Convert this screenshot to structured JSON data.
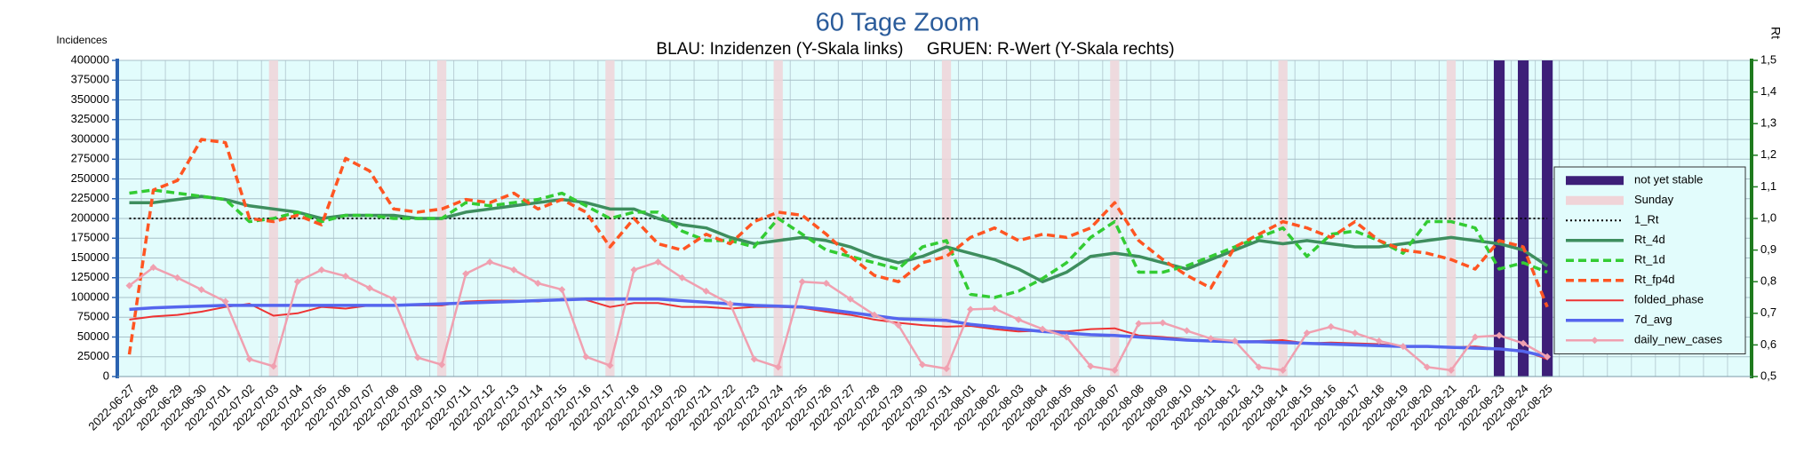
{
  "chart_data": {
    "type": "line",
    "title": "60 Tage Zoom",
    "subtitle": "BLAU: Inzidenzen (Y-Skala links)     GRUEN: R-Wert (Y-Skala rechts)",
    "ylabel": "Incidences",
    "y2label": "Rt",
    "categories": [
      "2022-06-27",
      "2022-06-28",
      "2022-06-29",
      "2022-06-30",
      "2022-07-01",
      "2022-07-02",
      "2022-07-03",
      "2022-07-04",
      "2022-07-05",
      "2022-07-06",
      "2022-07-07",
      "2022-07-08",
      "2022-07-09",
      "2022-07-10",
      "2022-07-11",
      "2022-07-12",
      "2022-07-13",
      "2022-07-14",
      "2022-07-15",
      "2022-07-16",
      "2022-07-17",
      "2022-07-18",
      "2022-07-19",
      "2022-07-20",
      "2022-07-21",
      "2022-07-22",
      "2022-07-23",
      "2022-07-24",
      "2022-07-25",
      "2022-07-26",
      "2022-07-27",
      "2022-07-28",
      "2022-07-29",
      "2022-07-30",
      "2022-07-31",
      "2022-08-01",
      "2022-08-02",
      "2022-08-03",
      "2022-08-04",
      "2022-08-05",
      "2022-08-06",
      "2022-08-07",
      "2022-08-08",
      "2022-08-09",
      "2022-08-10",
      "2022-08-11",
      "2022-08-12",
      "2022-08-13",
      "2022-08-14",
      "2022-08-15",
      "2022-08-16",
      "2022-08-17",
      "2022-08-18",
      "2022-08-19",
      "2022-08-20",
      "2022-08-21",
      "2022-08-22",
      "2022-08-23",
      "2022-08-24",
      "2022-08-25"
    ],
    "ylim": [
      0,
      400000
    ],
    "yticks": [
      0,
      25000,
      50000,
      75000,
      100000,
      125000,
      150000,
      175000,
      200000,
      225000,
      250000,
      275000,
      300000,
      325000,
      350000,
      375000,
      400000
    ],
    "y2lim": [
      0.5,
      1.5
    ],
    "y2ticks": [
      {
        "value": 0.5,
        "label": "0,5"
      },
      {
        "value": 0.6,
        "label": "0,6"
      },
      {
        "value": 0.7,
        "label": "0,7"
      },
      {
        "value": 0.8,
        "label": "0,8"
      },
      {
        "value": 0.9,
        "label": "0,9"
      },
      {
        "value": 1.0,
        "label": "1,0"
      },
      {
        "value": 1.1,
        "label": "1,1"
      },
      {
        "value": 1.2,
        "label": "1,2"
      },
      {
        "value": 1.3,
        "label": "1,3"
      },
      {
        "value": 1.4,
        "label": "1,4"
      },
      {
        "value": 1.5,
        "label": "1,5"
      }
    ],
    "grid": true,
    "legend": "right",
    "series": [
      {
        "name": "not yet stable",
        "color": "#3d1f78",
        "style": "bar",
        "axis": "y",
        "values": [
          null,
          null,
          null,
          null,
          null,
          null,
          null,
          null,
          null,
          null,
          null,
          null,
          null,
          null,
          null,
          null,
          null,
          null,
          null,
          null,
          null,
          null,
          null,
          null,
          null,
          null,
          null,
          null,
          null,
          null,
          null,
          null,
          null,
          null,
          null,
          null,
          null,
          null,
          null,
          null,
          null,
          null,
          null,
          null,
          null,
          null,
          null,
          null,
          null,
          null,
          null,
          null,
          null,
          null,
          null,
          null,
          null,
          400000,
          400000,
          400000
        ]
      },
      {
        "name": "Sunday",
        "color": "#f0d4d8",
        "style": "bar",
        "axis": "y",
        "values": [
          null,
          null,
          null,
          null,
          null,
          null,
          400000,
          null,
          null,
          null,
          null,
          null,
          null,
          400000,
          null,
          null,
          null,
          null,
          null,
          null,
          400000,
          null,
          null,
          null,
          null,
          null,
          null,
          400000,
          null,
          null,
          null,
          null,
          null,
          null,
          400000,
          null,
          null,
          null,
          null,
          null,
          null,
          400000,
          null,
          null,
          null,
          null,
          null,
          null,
          400000,
          null,
          null,
          null,
          null,
          null,
          null,
          400000,
          null,
          null,
          null,
          null
        ]
      },
      {
        "name": "1_Rt",
        "color": "#000000",
        "style": "dotted",
        "linewidth": 2,
        "axis": "y2",
        "values": [
          1,
          1,
          1,
          1,
          1,
          1,
          1,
          1,
          1,
          1,
          1,
          1,
          1,
          1,
          1,
          1,
          1,
          1,
          1,
          1,
          1,
          1,
          1,
          1,
          1,
          1,
          1,
          1,
          1,
          1,
          1,
          1,
          1,
          1,
          1,
          1,
          1,
          1,
          1,
          1,
          1,
          1,
          1,
          1,
          1,
          1,
          1,
          1,
          1,
          1,
          1,
          1,
          1,
          1,
          1,
          1,
          1,
          1,
          1,
          1
        ]
      },
      {
        "name": "Rt_4d",
        "color": "#3e8e5e",
        "style": "solid",
        "linewidth": 3.5,
        "axis": "y2",
        "values": [
          1.05,
          1.05,
          1.06,
          1.07,
          1.06,
          1.04,
          1.03,
          1.02,
          1.0,
          1.01,
          1.01,
          1.01,
          1.0,
          1.0,
          1.02,
          1.03,
          1.04,
          1.05,
          1.06,
          1.05,
          1.03,
          1.03,
          1.0,
          0.98,
          0.97,
          0.94,
          0.92,
          0.93,
          0.94,
          0.93,
          0.91,
          0.88,
          0.86,
          0.88,
          0.91,
          0.89,
          0.87,
          0.84,
          0.8,
          0.83,
          0.88,
          0.89,
          0.88,
          0.86,
          0.84,
          0.87,
          0.9,
          0.93,
          0.92,
          0.93,
          0.92,
          0.91,
          0.91,
          0.92,
          0.93,
          0.94,
          0.93,
          0.92,
          0.9,
          0.85
        ]
      },
      {
        "name": "Rt_1d",
        "color": "#33cc33",
        "style": "dashed",
        "linewidth": 3.5,
        "axis": "y2",
        "values": [
          1.08,
          1.09,
          1.08,
          1.07,
          1.06,
          0.99,
          1.0,
          1.02,
          0.99,
          1.01,
          1.01,
          1.0,
          1.0,
          1.0,
          1.05,
          1.04,
          1.05,
          1.06,
          1.08,
          1.04,
          1.0,
          1.02,
          1.02,
          0.96,
          0.93,
          0.93,
          0.91,
          1.0,
          0.95,
          0.9,
          0.88,
          0.86,
          0.84,
          0.91,
          0.93,
          0.76,
          0.75,
          0.77,
          0.81,
          0.86,
          0.94,
          0.99,
          0.83,
          0.83,
          0.85,
          0.88,
          0.91,
          0.94,
          0.97,
          0.88,
          0.95,
          0.96,
          0.93,
          0.89,
          0.99,
          0.99,
          0.97,
          0.84,
          0.86,
          0.83
        ]
      },
      {
        "name": "Rt_fp4d",
        "color": "#ff5522",
        "style": "dashed",
        "linewidth": 3.5,
        "axis": "y2",
        "values": [
          0.57,
          1.09,
          1.12,
          1.25,
          1.24,
          1.0,
          0.99,
          1.01,
          0.98,
          1.19,
          1.15,
          1.03,
          1.02,
          1.03,
          1.06,
          1.05,
          1.08,
          1.03,
          1.06,
          1.02,
          0.91,
          1.0,
          0.92,
          0.9,
          0.95,
          0.92,
          0.99,
          1.02,
          1.01,
          0.95,
          0.88,
          0.82,
          0.8,
          0.86,
          0.88,
          0.94,
          0.97,
          0.93,
          0.95,
          0.94,
          0.97,
          1.05,
          0.93,
          0.87,
          0.82,
          0.78,
          0.91,
          0.95,
          0.99,
          0.97,
          0.94,
          0.99,
          0.93,
          0.9,
          0.89,
          0.87,
          0.84,
          0.93,
          0.91,
          0.72
        ]
      },
      {
        "name": "folded_phase",
        "color": "#ee3333",
        "style": "solid",
        "linewidth": 2,
        "axis": "y",
        "values": [
          72000,
          76000,
          78000,
          82000,
          88000,
          92000,
          77000,
          80000,
          88000,
          86000,
          90000,
          90000,
          90000,
          90000,
          95000,
          96000,
          96000,
          95000,
          98000,
          97000,
          88000,
          93000,
          93000,
          88000,
          88000,
          86000,
          88000,
          88000,
          87000,
          82000,
          78000,
          72000,
          68000,
          65000,
          63000,
          64000,
          60000,
          57000,
          58000,
          57000,
          60000,
          61000,
          52000,
          50000,
          47000,
          45000,
          44000,
          45000,
          46000,
          42000,
          43000,
          42000,
          41000,
          38000,
          38000,
          37000,
          38000,
          35000,
          33000,
          22000
        ]
      },
      {
        "name": "7d_avg",
        "color": "#5566ee",
        "style": "solid",
        "linewidth": 3.5,
        "axis": "y",
        "values": [
          85000,
          87000,
          88000,
          89000,
          90000,
          90000,
          90000,
          90000,
          90000,
          90000,
          90000,
          90000,
          91000,
          92000,
          93000,
          94000,
          95000,
          96000,
          97000,
          98000,
          98000,
          98000,
          98000,
          96000,
          94000,
          92000,
          90000,
          89000,
          88000,
          85000,
          81000,
          77000,
          73000,
          72000,
          71000,
          66000,
          63000,
          60000,
          57000,
          55000,
          53000,
          52000,
          50000,
          48000,
          46000,
          45000,
          44000,
          44000,
          43000,
          42000,
          41000,
          40000,
          39000,
          38000,
          38000,
          37000,
          36000,
          35000,
          32000,
          25000
        ]
      },
      {
        "name": "daily_new_cases",
        "color": "#f0a0b0",
        "style": "solid",
        "marker": "diamond",
        "linewidth": 2.5,
        "axis": "y",
        "values": [
          115000,
          138000,
          125000,
          110000,
          95000,
          22000,
          13000,
          120000,
          135000,
          127000,
          112000,
          98000,
          24000,
          15000,
          130000,
          145000,
          135000,
          118000,
          110000,
          25000,
          14000,
          135000,
          145000,
          125000,
          108000,
          92000,
          22000,
          12000,
          120000,
          118000,
          98000,
          78000,
          65000,
          15000,
          10000,
          85000,
          86000,
          72000,
          60000,
          50000,
          13000,
          8000,
          67000,
          68000,
          58000,
          48000,
          45000,
          12000,
          8000,
          55000,
          63000,
          55000,
          45000,
          38000,
          12000,
          8000,
          50000,
          52000,
          42000,
          25000
        ]
      }
    ]
  }
}
